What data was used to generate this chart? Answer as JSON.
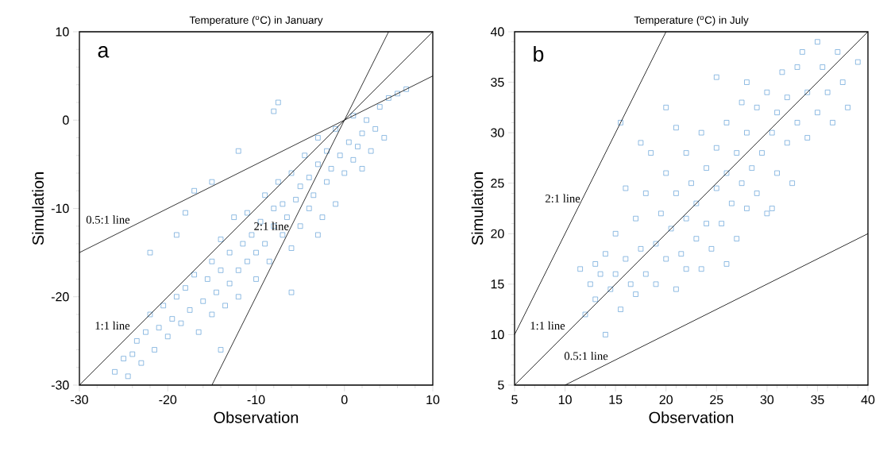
{
  "chart_data": [
    {
      "type": "scatter",
      "title": "Temperature ($^{o}$C) in January",
      "xlabel": "Observation",
      "ylabel": "Simulation",
      "xlim": [
        -30,
        10
      ],
      "ylim": [
        -30,
        10
      ],
      "xticks": [
        -30,
        -20,
        -10,
        0,
        10
      ],
      "yticks": [
        -30,
        -20,
        -10,
        0,
        10
      ],
      "marker": "square",
      "annotations": [
        "a"
      ],
      "series": [
        {
          "color": "#5b9bd5",
          "x": [
            -26,
            -25,
            -24.5,
            -24,
            -23.5,
            -23,
            -22.5,
            -22,
            -21.5,
            -21,
            -20.5,
            -20,
            -19.5,
            -19,
            -18.5,
            -18,
            -17.5,
            -17,
            -16.5,
            -16,
            -15.5,
            -15,
            -15,
            -14.5,
            -14,
            -14,
            -13.5,
            -13,
            -13,
            -12.5,
            -12,
            -12,
            -11.5,
            -11,
            -11,
            -10.5,
            -10,
            -10,
            -9.5,
            -9,
            -9,
            -8.5,
            -8,
            -8,
            -7.5,
            -7,
            -7,
            -6.5,
            -6,
            -6,
            -5.5,
            -5,
            -5,
            -4.5,
            -4,
            -4,
            -3.5,
            -3,
            -3,
            -2.5,
            -2,
            -2,
            -1.5,
            -1,
            -1,
            -0.5,
            0,
            0.5,
            1,
            1,
            1.5,
            2,
            2,
            2.5,
            3,
            3.5,
            4,
            4.5,
            5,
            6,
            7,
            -8,
            -7.5,
            -12,
            -15,
            -19,
            -18,
            -6,
            -3,
            -14,
            -22,
            -17
          ],
          "values": [
            -28.5,
            -27,
            -29,
            -26.5,
            -25,
            -27.5,
            -24,
            -22,
            -26,
            -23.5,
            -21,
            -24.5,
            -22.5,
            -20,
            -23,
            -19,
            -21.5,
            -17.5,
            -24,
            -20.5,
            -18,
            -16,
            -22,
            -19.5,
            -17,
            -13.5,
            -21,
            -18.5,
            -15,
            -11,
            -17,
            -20,
            -14,
            -16,
            -10.5,
            -13,
            -18,
            -15,
            -11.5,
            -14,
            -8.5,
            -16,
            -12,
            -10,
            -7,
            -13,
            -9.5,
            -11,
            -6,
            -14.5,
            -9,
            -12,
            -7.5,
            -4,
            -10,
            -6.5,
            -8.5,
            -5,
            -2,
            -11,
            -7,
            -3.5,
            -5.5,
            -1,
            -9.5,
            -4,
            -6,
            -2.5,
            -4.5,
            0.5,
            -3,
            -5.5,
            -1.5,
            0,
            -3.5,
            -1,
            1.5,
            -2,
            2.5,
            3,
            3.5,
            1,
            2,
            -3.5,
            -7,
            -13,
            -10.5,
            -19.5,
            -13,
            -26,
            -15,
            -8
          ]
        },
        {
          "type": "line",
          "name": "0.5:1 line",
          "marker": "none",
          "color": "#000000",
          "x": [
            -30,
            10
          ],
          "values": [
            -15,
            5
          ]
        },
        {
          "type": "line",
          "name": "1:1 line",
          "marker": "none",
          "color": "#000000",
          "x": [
            -30,
            10
          ],
          "values": [
            -30,
            10
          ]
        },
        {
          "type": "line",
          "name": "2:1 line",
          "marker": "none",
          "color": "#000000",
          "x": [
            -15,
            5
          ],
          "values": [
            -30,
            10
          ]
        }
      ]
    },
    {
      "type": "scatter",
      "title": "Temperature ($^{o}$C) in July",
      "xlabel": "Observation",
      "ylabel": "Simulation",
      "xlim": [
        5,
        40
      ],
      "ylim": [
        5,
        40
      ],
      "xticks": [
        5,
        10,
        15,
        20,
        25,
        30,
        35,
        40
      ],
      "yticks": [
        5,
        10,
        15,
        20,
        25,
        30,
        35,
        40
      ],
      "marker": "square",
      "annotations": [
        "b"
      ],
      "series": [
        {
          "color": "#5b9bd5",
          "x": [
            11.5,
            12,
            12.5,
            13,
            13,
            13.5,
            14,
            14,
            14.5,
            15,
            15,
            15.5,
            15.5,
            16,
            16.5,
            17,
            17,
            17.5,
            18,
            18,
            18.5,
            19,
            19,
            19.5,
            20,
            20,
            20,
            20.5,
            21,
            21,
            21.5,
            22,
            22,
            22,
            22.5,
            23,
            23,
            23.5,
            23.5,
            24,
            24,
            24.5,
            25,
            25,
            25,
            25.5,
            26,
            26,
            26.5,
            27,
            27,
            27.5,
            27.5,
            28,
            28,
            28.5,
            29,
            29,
            29.5,
            30,
            30,
            30.5,
            31,
            31,
            31.5,
            32,
            32,
            32.5,
            33,
            33,
            33.5,
            34,
            34,
            35,
            35,
            35.5,
            36,
            36.5,
            37,
            37.5,
            38,
            39,
            21,
            17.5,
            16,
            26,
            28,
            30.5
          ],
          "values": [
            16.5,
            12,
            15,
            17,
            13.5,
            16,
            10,
            18,
            14.5,
            16,
            20,
            31,
            12.5,
            17.5,
            15,
            21.5,
            14,
            18.5,
            16,
            24,
            28,
            19,
            15,
            22,
            26,
            17.5,
            32.5,
            20.5,
            14.5,
            24,
            18,
            28,
            21.5,
            16.5,
            25,
            19.5,
            23,
            30,
            16.5,
            26.5,
            21,
            18.5,
            24.5,
            28.5,
            35.5,
            21,
            26,
            31,
            23,
            19.5,
            28,
            25,
            33,
            22.5,
            30,
            26.5,
            24,
            32.5,
            28,
            22,
            34,
            30,
            26,
            32,
            36,
            29,
            33.5,
            25,
            31,
            36.5,
            38,
            34,
            29.5,
            39,
            32,
            36.5,
            34,
            31,
            38,
            35,
            32.5,
            37,
            30.5,
            29,
            24.5,
            17,
            35,
            22.5
          ]
        },
        {
          "type": "line",
          "name": "2:1 line",
          "marker": "none",
          "color": "#000000",
          "x": [
            5,
            20
          ],
          "values": [
            10,
            40
          ]
        },
        {
          "type": "line",
          "name": "1:1 line",
          "marker": "none",
          "color": "#000000",
          "x": [
            5,
            40
          ],
          "values": [
            5,
            40
          ]
        },
        {
          "type": "line",
          "name": "0.5:1 line",
          "marker": "none",
          "color": "#000000",
          "x": [
            10,
            40
          ],
          "values": [
            5,
            20
          ]
        }
      ]
    }
  ]
}
